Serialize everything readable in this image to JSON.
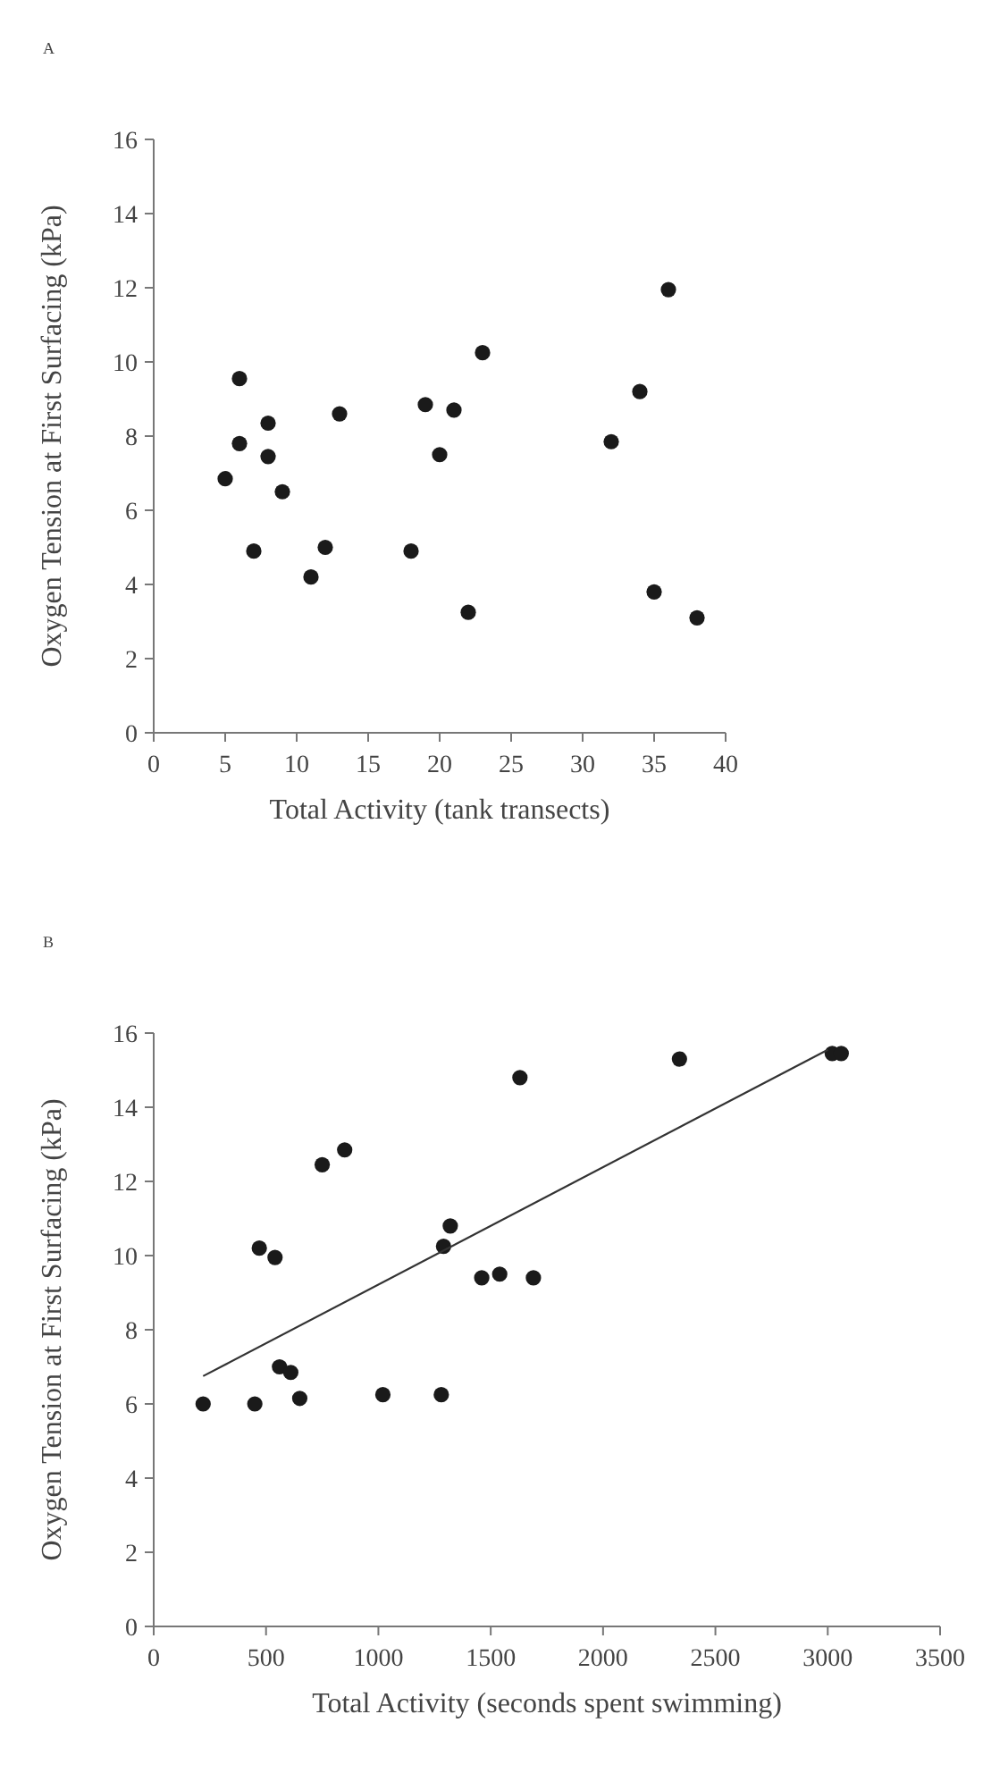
{
  "chart_data": [
    {
      "type": "scatter",
      "title": "A",
      "xlabel": "Total Activity (tank transects)",
      "ylabel": "Oxygen Tension at First Surfacing (kPa)",
      "xlim": [
        0,
        40
      ],
      "xticks": [
        0,
        5,
        10,
        15,
        20,
        25,
        30,
        35,
        40
      ],
      "ylim": [
        0,
        16
      ],
      "yticks": [
        0,
        2,
        4,
        6,
        8,
        10,
        12,
        14,
        16
      ],
      "marker": "circle",
      "grid": false,
      "series": [
        {
          "color": "#1a1a1a",
          "x": [
            5,
            6,
            6,
            7,
            8,
            8,
            9,
            11,
            12,
            13,
            18,
            19,
            20,
            21,
            22,
            23,
            32,
            34,
            35,
            36,
            38
          ],
          "values": [
            6.85,
            9.55,
            7.8,
            4.9,
            8.35,
            7.45,
            6.5,
            4.2,
            5.0,
            8.6,
            4.9,
            8.85,
            7.5,
            8.7,
            3.25,
            10.25,
            7.85,
            9.2,
            3.8,
            11.95,
            3.1
          ]
        }
      ]
    },
    {
      "type": "scatter",
      "title": "B",
      "xlabel": "Total Activity (seconds spent swimming)",
      "ylabel": "Oxygen Tension at First Surfacing (kPa)",
      "xlim": [
        0,
        3500
      ],
      "xticks": [
        0,
        500,
        1000,
        1500,
        2000,
        2500,
        3000,
        3500
      ],
      "ylim": [
        0,
        16
      ],
      "yticks": [
        0,
        2,
        4,
        6,
        8,
        10,
        12,
        14,
        16
      ],
      "marker": "circle",
      "grid": false,
      "series": [
        {
          "color": "#1a1a1a",
          "x": [
            220,
            450,
            470,
            540,
            560,
            610,
            650,
            750,
            850,
            1020,
            1280,
            1290,
            1320,
            1460,
            1540,
            1630,
            1690,
            2340,
            3020,
            3060
          ],
          "values": [
            6.0,
            6.0,
            10.2,
            9.95,
            7.0,
            6.85,
            6.15,
            12.45,
            12.85,
            6.25,
            6.25,
            10.25,
            10.8,
            9.4,
            9.5,
            14.8,
            9.4,
            15.3,
            15.45,
            15.45
          ]
        },
        {
          "type": "line",
          "color": "#333333",
          "marker": "none",
          "x": [
            220,
            3000
          ],
          "values": [
            6.75,
            15.55
          ]
        }
      ]
    }
  ]
}
